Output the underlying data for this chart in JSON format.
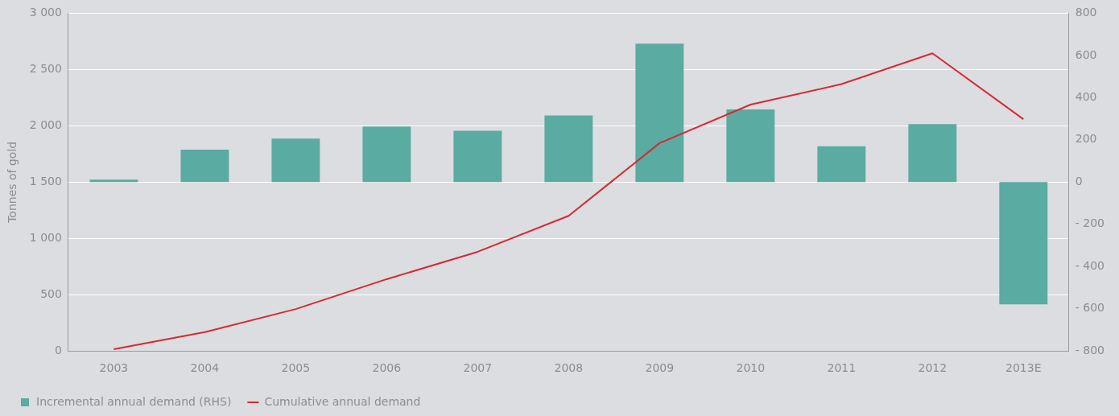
{
  "chart_data": {
    "type": "bar",
    "ylabel": "Tonnes of gold",
    "categories": [
      "2003",
      "2004",
      "2005",
      "2006",
      "2007",
      "2008",
      "2009",
      "2010",
      "2011",
      "2012",
      "2013E"
    ],
    "series": [
      {
        "name": "Incremental annual demand (RHS)",
        "axis": "y2",
        "color": "#5aaba1",
        "values": [
          12,
          154,
          206,
          263,
          243,
          316,
          656,
          344,
          170,
          275,
          -579
        ]
      },
      {
        "name": "Cumulative annual demand",
        "type": "line",
        "color": "#d42a36",
        "values": [
          15,
          167,
          372,
          638,
          881,
          1200,
          1846,
          2188,
          2370,
          2644,
          2059
        ]
      }
    ],
    "ylim": [
      0,
      3000
    ],
    "yticks": [
      0,
      500,
      {
        "value": 1000,
        "label": "1 000"
      },
      {
        "value": 1500,
        "label": "1 500"
      },
      {
        "value": 2000,
        "label": "2 000"
      },
      {
        "value": 2500,
        "label": "2 500"
      },
      {
        "value": 3000,
        "label": "3 000"
      }
    ],
    "y2lim": [
      -800,
      800
    ],
    "y2ticks": [
      {
        "value": -800,
        "label": "- 800"
      },
      {
        "value": -600,
        "label": "- 600"
      },
      {
        "value": -400,
        "label": "- 400"
      },
      {
        "value": -200,
        "label": "- 200"
      },
      0,
      200,
      400,
      600,
      800
    ],
    "grid": "y",
    "legend": "bottom left",
    "marker": "none",
    "line_style": "solid"
  }
}
